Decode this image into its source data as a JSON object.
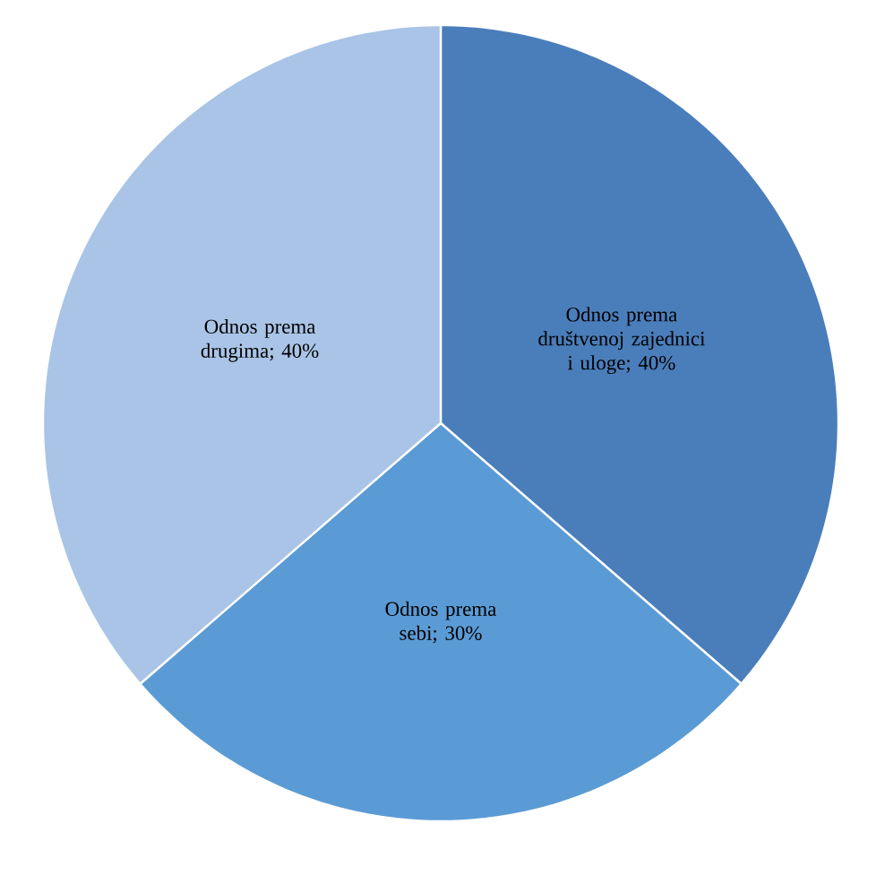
{
  "chart_data": {
    "type": "pie",
    "categories": [
      "Odnos prema društvenoj zajednici i uloge",
      "Odnos prema sebi",
      "Odnos prema drugima"
    ],
    "values": [
      40,
      30,
      40
    ],
    "value_labels": [
      "; 40%",
      "; 30%",
      "; 40%"
    ],
    "colors": [
      "#4a7ebb",
      "#5b9bd5",
      "#a9c4e6"
    ]
  }
}
